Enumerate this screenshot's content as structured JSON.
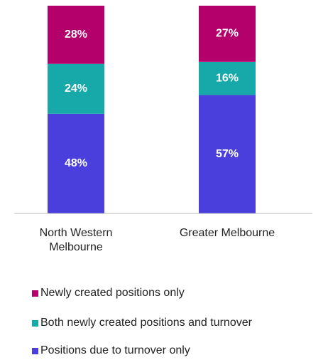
{
  "chart_data": {
    "type": "stacked_bar",
    "categories": [
      "North Western Melbourne",
      "Greater Melbourne"
    ],
    "series": [
      {
        "name": "Positions due to turnover only",
        "color": "#4a3fdc",
        "values": [
          48,
          57
        ],
        "value_labels": [
          "48%",
          "57%"
        ]
      },
      {
        "name": "Both newly created positions and turnover",
        "color": "#17a9a9",
        "values": [
          24,
          16
        ],
        "value_labels": [
          "24%",
          "16%"
        ]
      },
      {
        "name": "Newly created positions only",
        "color": "#b3006b",
        "values": [
          28,
          27
        ],
        "value_labels": [
          "28%",
          "27%"
        ]
      }
    ],
    "ylim": [
      0,
      100
    ],
    "legend": "bottom"
  }
}
